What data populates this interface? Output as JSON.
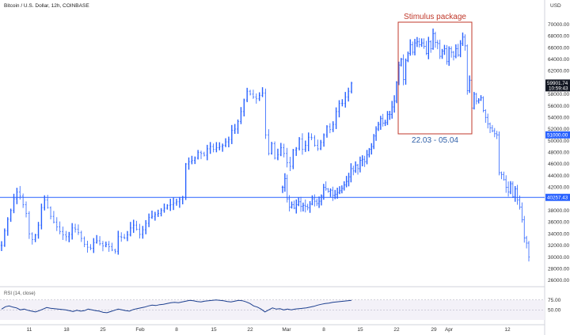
{
  "header": {
    "title": "Bitcoin / U.S. Dollar, 12h, COINBASE",
    "currency": "USD"
  },
  "colors": {
    "candle": "#2962ff",
    "line": "#2962ff",
    "annotation_box": "#c0392b",
    "annotation_range": "#2f5fa8",
    "rsi_line": "#1c3f8f",
    "tag_dark": "#131722",
    "tag_blue": "#2962ff"
  },
  "chart_data": {
    "type": "ohlc",
    "title": "Bitcoin / U.S. Dollar, 12h, COINBASE",
    "y_unit": "USD",
    "ylim": [
      26000,
      72000
    ],
    "y_ticks": [
      "70000.00",
      "68000.00",
      "66000.00",
      "64000.00",
      "62000.00",
      "60000.00",
      "58000.00",
      "56000.00",
      "54000.00",
      "52000.00",
      "50000.00",
      "48000.00",
      "46000.00",
      "44000.00",
      "42000.00",
      "38000.00",
      "36000.00",
      "34000.00",
      "32000.00",
      "30000.00",
      "28000.00",
      "26000.00"
    ],
    "x_ticks": [
      "11",
      "18",
      "25",
      "Feb",
      "8",
      "15",
      "22",
      "Mar",
      "8",
      "15",
      "22",
      "29",
      "Apr",
      "12"
    ],
    "series": [
      {
        "segment": "left",
        "closes": [
          32000,
          34500,
          36500,
          38000,
          40000,
          41200,
          40500,
          39000,
          37500,
          34000,
          33000,
          33800,
          35500,
          38500,
          39800,
          38500,
          37000,
          36000,
          35200,
          34400,
          33800,
          33500,
          33900,
          35000,
          34800,
          34200,
          33200,
          32200,
          31700,
          31500,
          32500,
          32800,
          32300,
          31900,
          32200,
          31800,
          31200,
          31000,
          33500,
          33400,
          33300,
          33800,
          35000,
          35500,
          34800,
          33900,
          34700,
          35800,
          36800,
          37000,
          37300,
          37500,
          38000,
          38400,
          38900,
          39000,
          39300,
          39500,
          39900,
          40300,
          46000,
          46400,
          46600,
          47000,
          48000,
          47800,
          47500,
          48600,
          49000,
          48500,
          48800,
          49000,
          49200,
          49800,
          50200,
          51800,
          52000,
          53300,
          55000,
          57000,
          58500,
          58000,
          57500,
          57200,
          57800,
          58200,
          51000,
          47800,
          49500,
          47000,
          47600,
          48800,
          47800,
          46200,
          45600,
          48400,
          48700,
          50300,
          48500,
          49200,
          50600,
          50500,
          49200,
          48600,
          49700,
          51000,
          52400,
          51900,
          52800,
          55000,
          56400,
          56400,
          57500,
          58500,
          59901
        ]
      },
      {
        "segment": "right",
        "closes": [
          42000,
          43500,
          40000,
          38600,
          39000,
          38400,
          39000,
          39500,
          38700,
          38900,
          38700,
          38500,
          39100,
          40000,
          39600,
          39200,
          39600,
          40500,
          42000,
          41700,
          41300,
          41500,
          40600,
          40800,
          41100,
          41400,
          41800,
          42400,
          43000,
          43800,
          45200,
          44800,
          45800,
          45200,
          46600,
          46800,
          46400,
          47600,
          48500,
          49000,
          50800,
          52000,
          52800,
          53800,
          53000,
          53100,
          54500,
          54500,
          55800,
          56800,
          60000,
          63000,
          64000,
          60500,
          63800,
          65000,
          66500,
          65200,
          66800,
          67000,
          66500,
          66800,
          66200,
          65000,
          67000,
          65800,
          68400,
          66900,
          66700,
          64500,
          65400,
          65800,
          63600,
          65800,
          65200,
          64500,
          65800,
          64700,
          66700,
          67800,
          66300,
          58600,
          60400,
          55600,
          58000,
          56800,
          57000,
          57400,
          55200,
          54000,
          52900,
          52200,
          51700,
          51200,
          51000,
          44500,
          44200,
          43300,
          42000,
          41200,
          42600,
          40400,
          41700,
          39800,
          38600,
          36400,
          33300,
          32400,
          30000
        ],
        "note": "Right segment overlaid on second half of the time axis"
      }
    ],
    "horizontal_lines": [
      {
        "price": 40257.43,
        "label": "40257.43"
      }
    ],
    "price_tags": [
      {
        "label": "59901.74",
        "sublabel": "10:59:43",
        "price": 59901.74,
        "style": "dark"
      },
      {
        "label": "51000.00",
        "price": 51000.0,
        "style": "blue"
      },
      {
        "label": "40257.43",
        "price": 40257.43,
        "style": "blue"
      }
    ],
    "annotations": [
      {
        "title": "Stimulus package",
        "range_label": "22.03 - 05.04"
      }
    ],
    "rsi": {
      "label": "RSI (14, close)",
      "y_ticks": [
        "75.00",
        "50.00"
      ],
      "values": [
        52,
        58,
        60,
        57,
        55,
        50,
        52,
        49,
        47,
        45,
        48,
        52,
        56,
        54,
        53,
        52,
        51,
        50,
        48,
        46,
        49,
        47,
        48,
        52,
        50,
        48,
        47,
        44,
        43,
        46,
        49,
        52,
        50,
        48,
        47,
        51,
        53,
        55,
        57,
        60,
        62,
        61,
        63,
        64,
        66,
        68,
        69,
        68,
        70,
        72,
        74,
        73,
        71,
        70,
        72,
        73,
        74,
        75,
        74,
        73,
        71,
        70,
        72,
        74,
        73,
        70,
        66,
        60,
        57,
        52,
        45,
        50,
        55,
        52,
        53,
        50,
        52,
        50,
        52,
        53,
        54,
        55,
        57,
        59,
        62,
        64,
        66,
        67,
        69,
        70,
        71,
        72,
        73,
        74
      ]
    }
  }
}
